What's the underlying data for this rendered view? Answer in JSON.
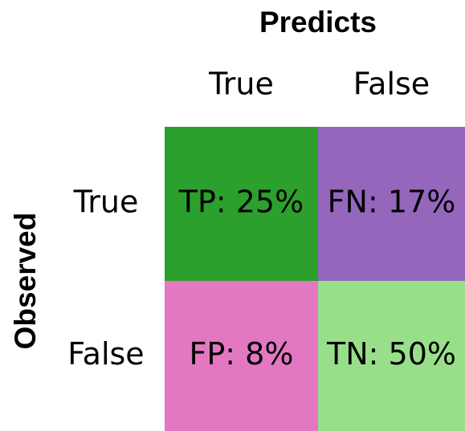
{
  "title": "Predicts",
  "y_title": "Observed",
  "columns": [
    "True",
    "False"
  ],
  "rows": [
    "True",
    "False"
  ],
  "cells": [
    [
      "TP: 25%",
      "FN: 17%"
    ],
    [
      "FP: 8%",
      "TN: 50%"
    ]
  ],
  "colors": [
    [
      "#2ca02c",
      "#9467bd"
    ],
    [
      "#e377c2",
      "#98df8a"
    ]
  ]
}
